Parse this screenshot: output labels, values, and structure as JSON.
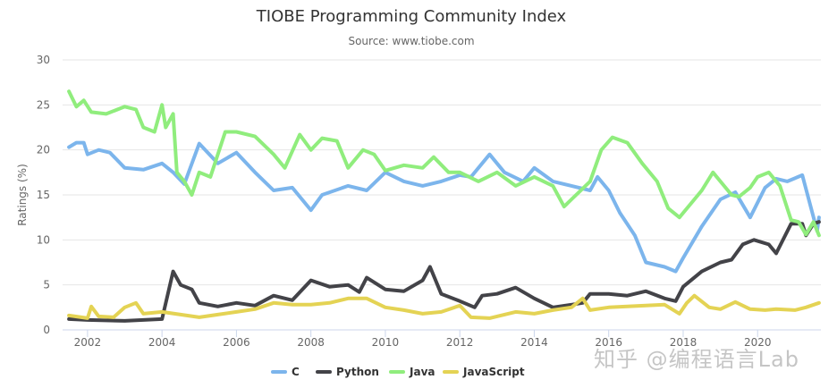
{
  "chart_data": {
    "type": "line",
    "title": "TIOBE Programming Community Index",
    "subtitle": "Source: www.tiobe.com",
    "xlabel": "",
    "ylabel": "Ratings (%)",
    "xlim": [
      2001.33,
      2021.7
    ],
    "ylim": [
      0,
      30
    ],
    "xticks": [
      2002,
      2004,
      2006,
      2008,
      2010,
      2012,
      2014,
      2016,
      2018,
      2020
    ],
    "yticks": [
      0,
      5,
      10,
      15,
      20,
      25,
      30
    ],
    "grid": true,
    "legend_position": "bottom",
    "series": [
      {
        "name": "C",
        "color": "#7cb5ec",
        "points": [
          [
            2001.5,
            20.3
          ],
          [
            2001.7,
            20.8
          ],
          [
            2001.9,
            20.8
          ],
          [
            2002,
            19.5
          ],
          [
            2002.3,
            20
          ],
          [
            2002.6,
            19.7
          ],
          [
            2003,
            18
          ],
          [
            2003.5,
            17.8
          ],
          [
            2004,
            18.5
          ],
          [
            2004.3,
            17.5
          ],
          [
            2004.6,
            16.2
          ],
          [
            2005,
            20.7
          ],
          [
            2005.5,
            18.5
          ],
          [
            2006,
            19.7
          ],
          [
            2006.5,
            17.5
          ],
          [
            2007,
            15.5
          ],
          [
            2007.5,
            15.8
          ],
          [
            2008,
            13.3
          ],
          [
            2008.3,
            15
          ],
          [
            2009,
            16
          ],
          [
            2009.5,
            15.5
          ],
          [
            2010,
            17.5
          ],
          [
            2010.5,
            16.5
          ],
          [
            2011,
            16
          ],
          [
            2011.5,
            16.5
          ],
          [
            2012,
            17.2
          ],
          [
            2012.3,
            17
          ],
          [
            2012.8,
            19.5
          ],
          [
            2013.2,
            17.5
          ],
          [
            2013.7,
            16.5
          ],
          [
            2014,
            18
          ],
          [
            2014.5,
            16.5
          ],
          [
            2015,
            16
          ],
          [
            2015.5,
            15.5
          ],
          [
            2015.7,
            17
          ],
          [
            2016,
            15.5
          ],
          [
            2016.3,
            13
          ],
          [
            2016.7,
            10.5
          ],
          [
            2017,
            7.5
          ],
          [
            2017.5,
            7
          ],
          [
            2017.8,
            6.5
          ],
          [
            2018,
            8
          ],
          [
            2018.5,
            11.5
          ],
          [
            2019,
            14.5
          ],
          [
            2019.4,
            15.3
          ],
          [
            2019.8,
            12.5
          ],
          [
            2020.2,
            15.8
          ],
          [
            2020.5,
            16.8
          ],
          [
            2020.8,
            16.5
          ],
          [
            2021.2,
            17.2
          ],
          [
            2021.6,
            11
          ],
          [
            2021.65,
            12.5
          ]
        ]
      },
      {
        "name": "Python",
        "color": "#434348",
        "points": [
          [
            2001.5,
            1.2
          ],
          [
            2002,
            1.1
          ],
          [
            2003,
            1
          ],
          [
            2004,
            1.2
          ],
          [
            2004.3,
            6.5
          ],
          [
            2004.5,
            5
          ],
          [
            2004.8,
            4.5
          ],
          [
            2005,
            3
          ],
          [
            2005.5,
            2.6
          ],
          [
            2006,
            3
          ],
          [
            2006.5,
            2.7
          ],
          [
            2007,
            3.8
          ],
          [
            2007.5,
            3.3
          ],
          [
            2008,
            5.5
          ],
          [
            2008.5,
            4.8
          ],
          [
            2009,
            5
          ],
          [
            2009.3,
            4.2
          ],
          [
            2009.5,
            5.8
          ],
          [
            2010,
            4.5
          ],
          [
            2010.5,
            4.3
          ],
          [
            2011,
            5.5
          ],
          [
            2011.2,
            7
          ],
          [
            2011.5,
            4
          ],
          [
            2012,
            3.2
          ],
          [
            2012.4,
            2.5
          ],
          [
            2012.6,
            3.8
          ],
          [
            2013,
            4
          ],
          [
            2013.5,
            4.7
          ],
          [
            2014,
            3.5
          ],
          [
            2014.5,
            2.5
          ],
          [
            2015,
            2.8
          ],
          [
            2015.3,
            3
          ],
          [
            2015.5,
            4
          ],
          [
            2016,
            4
          ],
          [
            2016.5,
            3.8
          ],
          [
            2017,
            4.3
          ],
          [
            2017.5,
            3.5
          ],
          [
            2017.8,
            3.2
          ],
          [
            2018,
            4.8
          ],
          [
            2018.5,
            6.5
          ],
          [
            2019,
            7.5
          ],
          [
            2019.3,
            7.8
          ],
          [
            2019.6,
            9.5
          ],
          [
            2019.9,
            10
          ],
          [
            2020.3,
            9.5
          ],
          [
            2020.5,
            8.5
          ],
          [
            2020.9,
            11.8
          ],
          [
            2021.2,
            11.8
          ],
          [
            2021.3,
            10.5
          ],
          [
            2021.5,
            11.8
          ],
          [
            2021.65,
            12
          ]
        ]
      },
      {
        "name": "Java",
        "color": "#90ed7d",
        "points": [
          [
            2001.5,
            26.5
          ],
          [
            2001.7,
            24.8
          ],
          [
            2001.9,
            25.5
          ],
          [
            2002.1,
            24.2
          ],
          [
            2002.5,
            24
          ],
          [
            2003,
            24.8
          ],
          [
            2003.3,
            24.5
          ],
          [
            2003.5,
            22.5
          ],
          [
            2003.8,
            22
          ],
          [
            2004,
            25
          ],
          [
            2004.1,
            22.5
          ],
          [
            2004.3,
            24
          ],
          [
            2004.4,
            17.5
          ],
          [
            2004.6,
            16.5
          ],
          [
            2004.8,
            15
          ],
          [
            2005,
            17.5
          ],
          [
            2005.3,
            17
          ],
          [
            2005.7,
            22
          ],
          [
            2006,
            22
          ],
          [
            2006.5,
            21.5
          ],
          [
            2007,
            19.5
          ],
          [
            2007.3,
            18
          ],
          [
            2007.7,
            21.7
          ],
          [
            2008,
            20
          ],
          [
            2008.3,
            21.3
          ],
          [
            2008.7,
            21
          ],
          [
            2009,
            18
          ],
          [
            2009.4,
            20
          ],
          [
            2009.7,
            19.5
          ],
          [
            2010,
            17.7
          ],
          [
            2010.5,
            18.3
          ],
          [
            2011,
            18
          ],
          [
            2011.3,
            19.2
          ],
          [
            2011.7,
            17.5
          ],
          [
            2012,
            17.5
          ],
          [
            2012.5,
            16.5
          ],
          [
            2013,
            17.5
          ],
          [
            2013.5,
            16
          ],
          [
            2014,
            17
          ],
          [
            2014.5,
            16
          ],
          [
            2014.8,
            13.7
          ],
          [
            2015,
            14.5
          ],
          [
            2015.5,
            16.5
          ],
          [
            2015.8,
            20
          ],
          [
            2016.1,
            21.4
          ],
          [
            2016.5,
            20.8
          ],
          [
            2016.9,
            18.5
          ],
          [
            2017.3,
            16.5
          ],
          [
            2017.6,
            13.5
          ],
          [
            2017.9,
            12.5
          ],
          [
            2018.2,
            14
          ],
          [
            2018.5,
            15.5
          ],
          [
            2018.8,
            17.5
          ],
          [
            2019,
            16.5
          ],
          [
            2019.3,
            15
          ],
          [
            2019.5,
            14.8
          ],
          [
            2019.8,
            15.8
          ],
          [
            2020,
            17
          ],
          [
            2020.3,
            17.5
          ],
          [
            2020.6,
            16
          ],
          [
            2020.9,
            12.2
          ],
          [
            2021.1,
            12
          ],
          [
            2021.3,
            10.6
          ],
          [
            2021.5,
            12
          ],
          [
            2021.65,
            10.5
          ]
        ]
      },
      {
        "name": "JavaScript",
        "color": "#e4d354",
        "points": [
          [
            2001.5,
            1.6
          ],
          [
            2002,
            1.3
          ],
          [
            2002.1,
            2.6
          ],
          [
            2002.3,
            1.5
          ],
          [
            2002.7,
            1.4
          ],
          [
            2003,
            2.5
          ],
          [
            2003.3,
            3
          ],
          [
            2003.5,
            1.8
          ],
          [
            2004,
            2
          ],
          [
            2004.5,
            1.7
          ],
          [
            2005,
            1.4
          ],
          [
            2005.5,
            1.7
          ],
          [
            2006,
            2
          ],
          [
            2006.5,
            2.3
          ],
          [
            2007,
            3
          ],
          [
            2007.5,
            2.8
          ],
          [
            2008,
            2.8
          ],
          [
            2008.5,
            3
          ],
          [
            2009,
            3.5
          ],
          [
            2009.5,
            3.5
          ],
          [
            2010,
            2.5
          ],
          [
            2010.5,
            2.2
          ],
          [
            2011,
            1.8
          ],
          [
            2011.5,
            2
          ],
          [
            2012,
            2.7
          ],
          [
            2012.3,
            1.4
          ],
          [
            2012.8,
            1.3
          ],
          [
            2013,
            1.5
          ],
          [
            2013.5,
            2
          ],
          [
            2014,
            1.8
          ],
          [
            2014.5,
            2.2
          ],
          [
            2015,
            2.5
          ],
          [
            2015.3,
            3.5
          ],
          [
            2015.5,
            2.2
          ],
          [
            2016,
            2.5
          ],
          [
            2016.5,
            2.6
          ],
          [
            2017,
            2.7
          ],
          [
            2017.5,
            2.8
          ],
          [
            2017.9,
            1.8
          ],
          [
            2018.1,
            3
          ],
          [
            2018.3,
            3.8
          ],
          [
            2018.7,
            2.5
          ],
          [
            2019,
            2.3
          ],
          [
            2019.4,
            3.1
          ],
          [
            2019.8,
            2.3
          ],
          [
            2020.2,
            2.2
          ],
          [
            2020.5,
            2.3
          ],
          [
            2021,
            2.2
          ],
          [
            2021.3,
            2.5
          ],
          [
            2021.65,
            3
          ]
        ]
      }
    ]
  },
  "watermark": "知乎 @编程语言Lab"
}
